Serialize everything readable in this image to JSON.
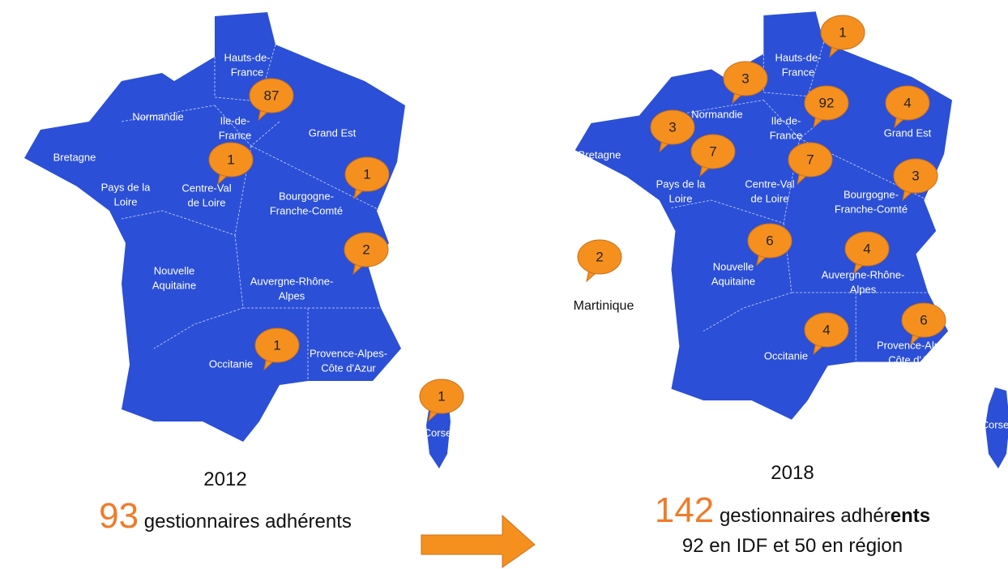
{
  "maps": [
    {
      "regions": [
        [
          "Hauts-de-",
          "France"
        ],
        [
          "Normandie"
        ],
        [
          "Ile-de-",
          "France"
        ],
        [
          "Grand Est"
        ],
        [
          "Bretagne"
        ],
        [
          "Pays de la",
          "Loire"
        ],
        [
          "Centre-Val",
          "de Loire"
        ],
        [
          "Bourgogne-",
          "Franche-Comté"
        ],
        [
          "Nouvelle",
          "Aquitaine"
        ],
        [
          "Auvergne-Rhône-",
          "Alpes"
        ],
        [
          "Occitanie"
        ],
        [
          "Provence-Alpes-",
          "Côte d'Azur"
        ],
        [
          "Corse"
        ]
      ],
      "bubbles": [
        87,
        1,
        1,
        2,
        1,
        1
      ],
      "year": "2012",
      "total": "93",
      "caption": [
        "gestionnaires adhérents"
      ]
    },
    {
      "regions": [
        [
          "Hauts-de-",
          "France"
        ],
        [
          "Normandie"
        ],
        [
          "Ile-de-",
          "France"
        ],
        [
          "Grand Est"
        ],
        [
          "Bretagne"
        ],
        [
          "Pays de la",
          "Loire"
        ],
        [
          "Centre-Val",
          "de Loire"
        ],
        [
          "Bourgogne-",
          "Franche-Comté"
        ],
        [
          "Nouvelle",
          "Aquitaine"
        ],
        [
          "Auvergne-Rhône-",
          "Alpes"
        ],
        [
          "Occitanie"
        ],
        [
          "Provence-Alpes-",
          "Côte d'Azur"
        ],
        [
          "Corse"
        ],
        [
          "Martinique"
        ]
      ],
      "bubbles": [
        1,
        3,
        92,
        4,
        3,
        7,
        7,
        3,
        6,
        4,
        2,
        4,
        6
      ],
      "year": "2018",
      "total": "142",
      "caption": [
        "gestionnaires adhér",
        "ents"
      ],
      "subcaption": "92 en IDF et 50 en région"
    }
  ]
}
